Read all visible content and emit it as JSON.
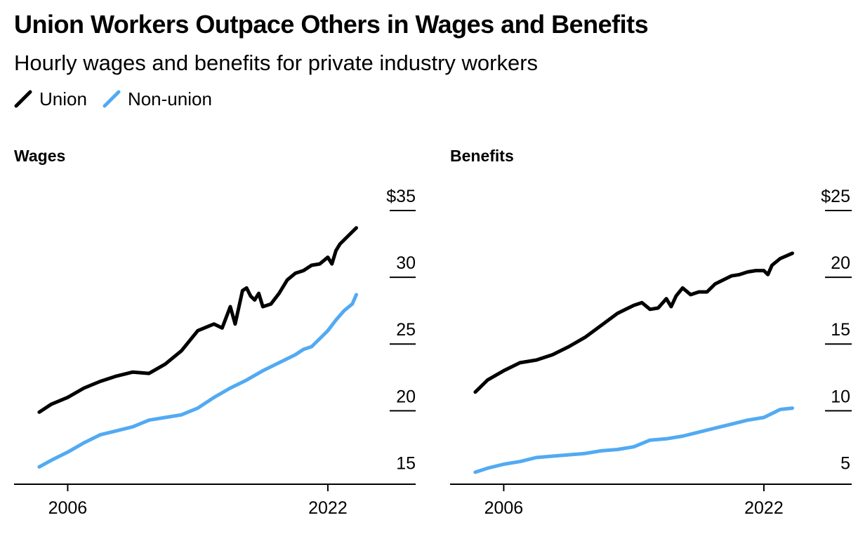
{
  "title": "Union Workers Outpace Others in Wages and Benefits",
  "subtitle": "Hourly wages and benefits for private industry workers",
  "colors": {
    "union": "#000000",
    "non_union": "#52aaf2"
  },
  "chart_data": [
    {
      "type": "line",
      "panel_title": "Wages",
      "y_tick_labels": [
        "$35",
        "30",
        "25",
        "20",
        "15"
      ],
      "y_ticks": [
        35,
        30,
        25,
        20,
        15
      ],
      "ylim": [
        14.5,
        35
      ],
      "x_tick_labels": [
        "2006",
        "2022"
      ],
      "x_ticks": [
        2006,
        2022
      ],
      "xlim": [
        2002.7,
        2027.4
      ],
      "legend": "top-left",
      "grid": false,
      "series": [
        {
          "name": "Union",
          "color": "#000000",
          "x": [
            2004.25,
            2005.0,
            2006.0,
            2007.0,
            2008.0,
            2009.0,
            2010.0,
            2011.0,
            2012.0,
            2013.0,
            2014.0,
            2015.0,
            2015.5,
            2016.0,
            2016.3,
            2016.75,
            2017.0,
            2017.25,
            2017.5,
            2017.75,
            2018.0,
            2018.5,
            2019.0,
            2019.5,
            2020.0,
            2020.5,
            2021.0,
            2021.5,
            2022.0,
            2022.25,
            2022.5,
            2022.75,
            2023.0,
            2023.5,
            2023.75
          ],
          "values": [
            19.9,
            20.5,
            21.0,
            21.7,
            22.2,
            22.6,
            22.9,
            22.8,
            23.5,
            24.5,
            26.0,
            26.5,
            26.2,
            27.8,
            26.5,
            29.0,
            29.2,
            28.6,
            28.3,
            28.8,
            27.8,
            28.0,
            28.8,
            29.8,
            30.3,
            30.5,
            30.9,
            31.0,
            31.5,
            31.0,
            32.0,
            32.5,
            32.8,
            33.4,
            33.7
          ]
        },
        {
          "name": "Non-union",
          "color": "#52aaf2",
          "x": [
            2004.25,
            2005.0,
            2006.0,
            2007.0,
            2008.0,
            2009.0,
            2010.0,
            2011.0,
            2012.0,
            2013.0,
            2014.0,
            2015.0,
            2016.0,
            2017.0,
            2018.0,
            2019.0,
            2020.0,
            2020.5,
            2021.0,
            2021.5,
            2022.0,
            2022.5,
            2023.0,
            2023.5,
            2023.75
          ],
          "values": [
            15.8,
            16.3,
            16.9,
            17.6,
            18.2,
            18.5,
            18.8,
            19.3,
            19.5,
            19.7,
            20.2,
            21.0,
            21.7,
            22.3,
            23.0,
            23.6,
            24.2,
            24.6,
            24.8,
            25.4,
            26.0,
            26.8,
            27.5,
            28.0,
            28.7
          ]
        }
      ]
    },
    {
      "type": "line",
      "panel_title": "Benefits",
      "y_tick_labels": [
        "$25",
        "20",
        "15",
        "10",
        "5"
      ],
      "y_ticks": [
        25,
        20,
        15,
        10,
        5
      ],
      "ylim": [
        4.5,
        25
      ],
      "x_tick_labels": [
        "2006",
        "2022"
      ],
      "x_ticks": [
        2006,
        2022
      ],
      "xlim": [
        2002.7,
        2027.4
      ],
      "legend": "top-left",
      "grid": false,
      "series": [
        {
          "name": "Union",
          "color": "#000000",
          "x": [
            2004.25,
            2005.0,
            2006.0,
            2007.0,
            2008.0,
            2009.0,
            2010.0,
            2011.0,
            2012.0,
            2013.0,
            2014.0,
            2014.5,
            2015.0,
            2015.5,
            2016.0,
            2016.3,
            2016.6,
            2017.0,
            2017.5,
            2018.0,
            2018.5,
            2019.0,
            2019.5,
            2020.0,
            2020.5,
            2021.0,
            2021.5,
            2022.0,
            2022.25,
            2022.5,
            2023.0,
            2023.75
          ],
          "values": [
            11.4,
            12.3,
            13.0,
            13.6,
            13.8,
            14.2,
            14.8,
            15.5,
            16.4,
            17.3,
            17.9,
            18.1,
            17.6,
            17.7,
            18.4,
            17.8,
            18.6,
            19.2,
            18.7,
            18.9,
            18.9,
            19.5,
            19.8,
            20.1,
            20.2,
            20.4,
            20.5,
            20.5,
            20.2,
            20.9,
            21.4,
            21.8
          ]
        },
        {
          "name": "Non-union",
          "color": "#52aaf2",
          "x": [
            2004.25,
            2005.0,
            2006.0,
            2007.0,
            2008.0,
            2009.0,
            2010.0,
            2011.0,
            2012.0,
            2013.0,
            2014.0,
            2015.0,
            2016.0,
            2017.0,
            2018.0,
            2019.0,
            2020.0,
            2021.0,
            2022.0,
            2022.5,
            2023.0,
            2023.75
          ],
          "values": [
            5.4,
            5.7,
            6.0,
            6.2,
            6.5,
            6.6,
            6.7,
            6.8,
            7.0,
            7.1,
            7.3,
            7.8,
            7.9,
            8.1,
            8.4,
            8.7,
            9.0,
            9.3,
            9.5,
            9.8,
            10.1,
            10.2
          ]
        }
      ]
    }
  ]
}
